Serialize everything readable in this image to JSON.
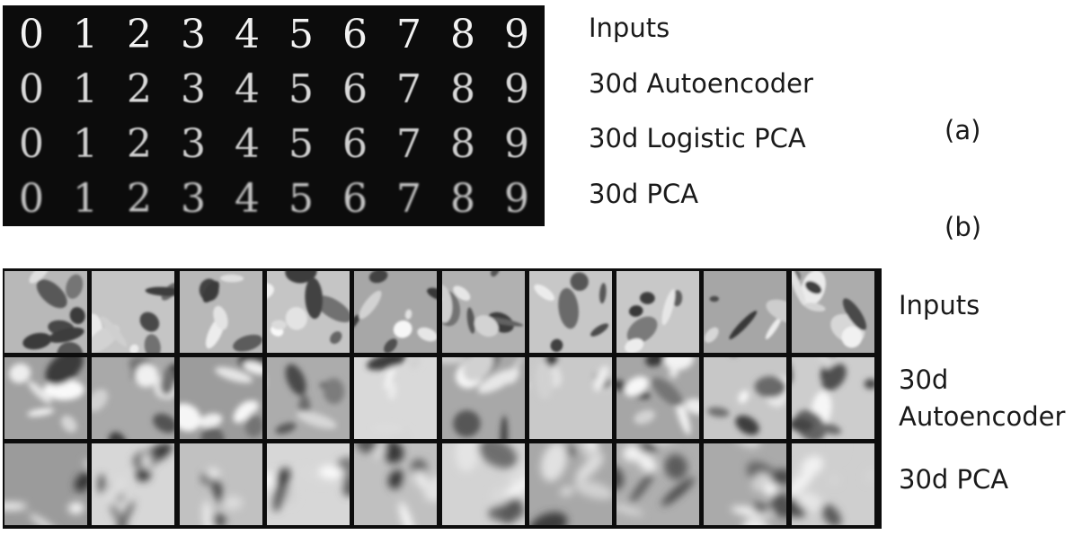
{
  "panel_a": {
    "tag": "(a)",
    "digits": [
      "0",
      "1",
      "2",
      "3",
      "4",
      "5",
      "6",
      "7",
      "8",
      "9"
    ],
    "row_labels": [
      "Inputs",
      "30d Autoencoder",
      "30d Logistic PCA",
      "30d PCA"
    ]
  },
  "panel_b": {
    "tag": "(b)",
    "row_labels": {
      "inputs": "Inputs",
      "autoencoder_line1": "30d",
      "autoencoder_line2": "Autoencoder",
      "pca": "30d PCA"
    },
    "columns": 10,
    "rows": 3
  }
}
